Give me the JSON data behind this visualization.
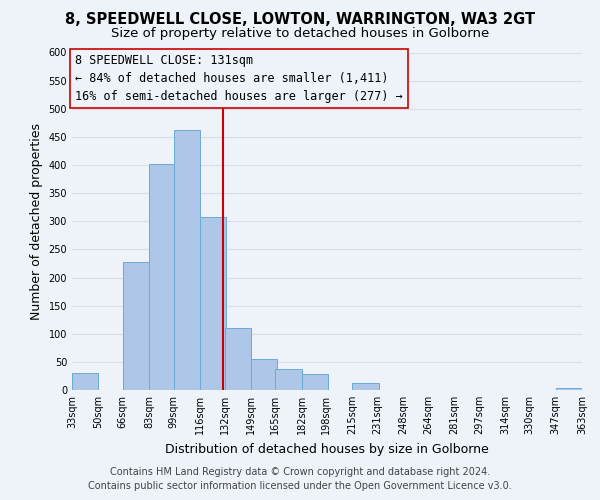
{
  "title": "8, SPEEDWELL CLOSE, LOWTON, WARRINGTON, WA3 2GT",
  "subtitle": "Size of property relative to detached houses in Golborne",
  "xlabel": "Distribution of detached houses by size in Golborne",
  "ylabel": "Number of detached properties",
  "bar_left_edges": [
    33,
    50,
    66,
    83,
    99,
    116,
    132,
    149,
    165,
    182,
    198,
    215,
    231,
    248,
    264,
    281,
    297,
    314,
    330,
    347
  ],
  "bar_heights": [
    30,
    0,
    228,
    402,
    462,
    308,
    110,
    55,
    37,
    29,
    0,
    13,
    0,
    0,
    0,
    0,
    0,
    0,
    0,
    4
  ],
  "bin_width": 17,
  "tick_labels": [
    "33sqm",
    "50sqm",
    "66sqm",
    "83sqm",
    "99sqm",
    "116sqm",
    "132sqm",
    "149sqm",
    "165sqm",
    "182sqm",
    "198sqm",
    "215sqm",
    "231sqm",
    "248sqm",
    "264sqm",
    "281sqm",
    "297sqm",
    "314sqm",
    "330sqm",
    "347sqm",
    "363sqm"
  ],
  "vline_x": 131,
  "xlim": [
    33,
    364
  ],
  "ylim": [
    0,
    600
  ],
  "yticks": [
    0,
    50,
    100,
    150,
    200,
    250,
    300,
    350,
    400,
    450,
    500,
    550,
    600
  ],
  "bar_color": "#aec6e8",
  "bar_edge_color": "#6aaad4",
  "vline_color": "#cc0000",
  "annotation_box_edge": "#cc0000",
  "annotation_line1": "8 SPEEDWELL CLOSE: 131sqm",
  "annotation_line2": "← 84% of detached houses are smaller (1,411)",
  "annotation_line3": "16% of semi-detached houses are larger (277) →",
  "footer1": "Contains HM Land Registry data © Crown copyright and database right 2024.",
  "footer2": "Contains public sector information licensed under the Open Government Licence v3.0.",
  "bg_color": "#eef2f9",
  "grid_color": "#d8dde8",
  "title_fontsize": 10.5,
  "subtitle_fontsize": 9.5,
  "axis_label_fontsize": 9,
  "tick_fontsize": 7,
  "annotation_fontsize": 8.5,
  "footer_fontsize": 7
}
